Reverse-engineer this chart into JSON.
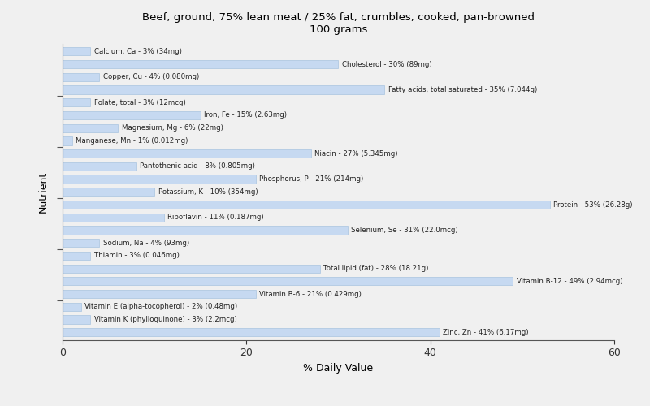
{
  "title": "Beef, ground, 75% lean meat / 25% fat, crumbles, cooked, pan-browned\n100 grams",
  "xlabel": "% Daily Value",
  "ylabel": "Nutrient",
  "bar_color": "#c6d9f1",
  "bar_edge_color": "#a8c4e0",
  "background_color": "#f0f0f0",
  "xlim": [
    0,
    60
  ],
  "xticks": [
    0,
    20,
    40,
    60
  ],
  "nutrients": [
    {
      "label": "Calcium, Ca - 3% (34mg)",
      "value": 3
    },
    {
      "label": "Cholesterol - 30% (89mg)",
      "value": 30
    },
    {
      "label": "Copper, Cu - 4% (0.080mg)",
      "value": 4
    },
    {
      "label": "Fatty acids, total saturated - 35% (7.044g)",
      "value": 35
    },
    {
      "label": "Folate, total - 3% (12mcg)",
      "value": 3
    },
    {
      "label": "Iron, Fe - 15% (2.63mg)",
      "value": 15
    },
    {
      "label": "Magnesium, Mg - 6% (22mg)",
      "value": 6
    },
    {
      "label": "Manganese, Mn - 1% (0.012mg)",
      "value": 1
    },
    {
      "label": "Niacin - 27% (5.345mg)",
      "value": 27
    },
    {
      "label": "Pantothenic acid - 8% (0.805mg)",
      "value": 8
    },
    {
      "label": "Phosphorus, P - 21% (214mg)",
      "value": 21
    },
    {
      "label": "Potassium, K - 10% (354mg)",
      "value": 10
    },
    {
      "label": "Protein - 53% (26.28g)",
      "value": 53
    },
    {
      "label": "Riboflavin - 11% (0.187mg)",
      "value": 11
    },
    {
      "label": "Selenium, Se - 31% (22.0mcg)",
      "value": 31
    },
    {
      "label": "Sodium, Na - 4% (93mg)",
      "value": 4
    },
    {
      "label": "Thiamin - 3% (0.046mg)",
      "value": 3
    },
    {
      "label": "Total lipid (fat) - 28% (18.21g)",
      "value": 28
    },
    {
      "label": "Vitamin B-12 - 49% (2.94mcg)",
      "value": 49
    },
    {
      "label": "Vitamin B-6 - 21% (0.429mg)",
      "value": 21
    },
    {
      "label": "Vitamin E (alpha-tocopherol) - 2% (0.48mg)",
      "value": 2
    },
    {
      "label": "Vitamin K (phylloquinone) - 3% (2.2mcg)",
      "value": 3
    },
    {
      "label": "Zinc, Zn - 41% (6.17mg)",
      "value": 41
    }
  ],
  "y_tick_groups": [
    3,
    7,
    11,
    15,
    19
  ],
  "text_threshold": 20
}
